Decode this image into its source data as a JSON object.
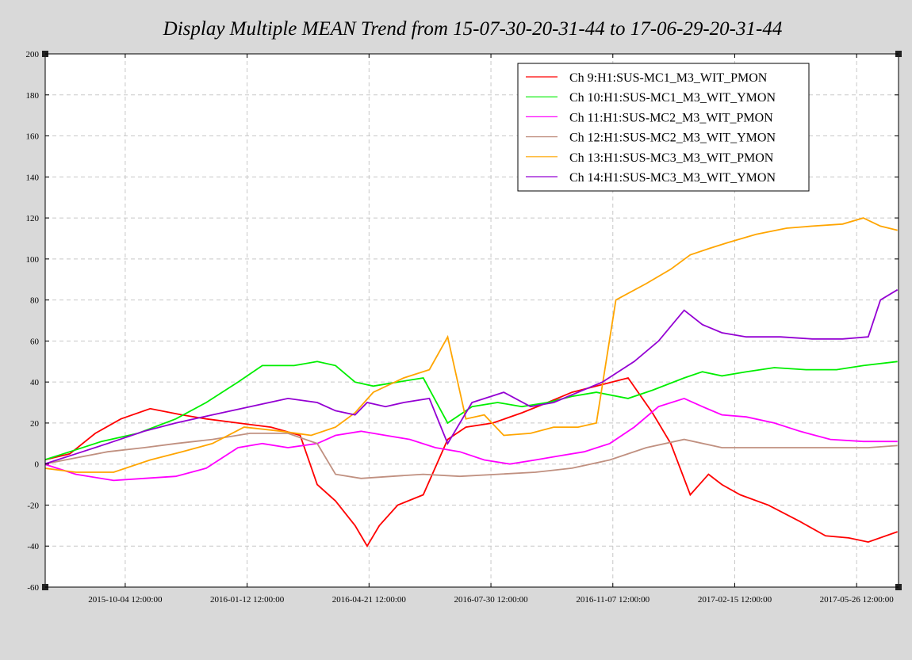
{
  "chart_data": {
    "type": "line",
    "title": "Display Multiple MEAN Trend from 15-07-30-20-31-44 to 17-06-29-20-31-44",
    "xlabel": "",
    "ylabel": "",
    "ylim": [
      -60,
      200
    ],
    "yticks": [
      -60,
      -40,
      -20,
      0,
      20,
      40,
      60,
      80,
      100,
      120,
      140,
      160,
      180,
      200
    ],
    "xlim": [
      "2015-07-30 20:31:44",
      "2017-06-29 20:31:44"
    ],
    "xticks": [
      {
        "date": "2015-10-04 12:00:00",
        "label": "2015-10-04 12:00:00"
      },
      {
        "date": "2016-01-12 12:00:00",
        "label": "2016-01-12 12:00:00"
      },
      {
        "date": "2016-04-21 12:00:00",
        "label": "2016-04-21 12:00:00"
      },
      {
        "date": "2016-07-30 12:00:00",
        "label": "2016-07-30 12:00:00"
      },
      {
        "date": "2016-11-07 12:00:00",
        "label": "2016-11-07 12:00:00"
      },
      {
        "date": "2017-02-15 12:00:00",
        "label": "2017-02-15 12:00:00"
      },
      {
        "date": "2017-05-26 12:00:00",
        "label": "2017-05-26 12:00:00"
      }
    ],
    "grid": true,
    "legend_position": "top-right",
    "series": [
      {
        "name": "Ch 9:H1:SUS-MC1_M3_WIT_PMON",
        "color": "#ff0000",
        "points": [
          [
            "2015-07-30",
            2
          ],
          [
            "2015-08-20",
            5
          ],
          [
            "2015-09-10",
            15
          ],
          [
            "2015-10-01",
            22
          ],
          [
            "2015-10-25",
            27
          ],
          [
            "2015-11-20",
            24
          ],
          [
            "2015-12-10",
            22
          ],
          [
            "2016-01-05",
            20
          ],
          [
            "2016-02-01",
            18
          ],
          [
            "2016-02-25",
            14
          ],
          [
            "2016-03-10",
            -10
          ],
          [
            "2016-03-25",
            -18
          ],
          [
            "2016-04-10",
            -30
          ],
          [
            "2016-04-20",
            -40
          ],
          [
            "2016-04-30",
            -30
          ],
          [
            "2016-05-15",
            -20
          ],
          [
            "2016-06-05",
            -15
          ],
          [
            "2016-06-25",
            12
          ],
          [
            "2016-07-10",
            18
          ],
          [
            "2016-08-01",
            20
          ],
          [
            "2016-08-25",
            25
          ],
          [
            "2016-09-15",
            30
          ],
          [
            "2016-10-05",
            35
          ],
          [
            "2016-10-25",
            38
          ],
          [
            "2016-11-20",
            42
          ],
          [
            "2016-12-10",
            25
          ],
          [
            "2016-12-25",
            10
          ],
          [
            "2017-01-10",
            -15
          ],
          [
            "2017-01-25",
            -5
          ],
          [
            "2017-02-05",
            -10
          ],
          [
            "2017-02-20",
            -15
          ],
          [
            "2017-03-15",
            -20
          ],
          [
            "2017-04-10",
            -28
          ],
          [
            "2017-05-01",
            -35
          ],
          [
            "2017-05-20",
            -36
          ],
          [
            "2017-06-05",
            -38
          ],
          [
            "2017-06-29",
            -33
          ]
        ]
      },
      {
        "name": "Ch 10:H1:SUS-MC1_M3_WIT_YMON",
        "color": "#00ee00",
        "points": [
          [
            "2015-07-30",
            2
          ],
          [
            "2015-08-20",
            6
          ],
          [
            "2015-09-15",
            11
          ],
          [
            "2015-10-15",
            15
          ],
          [
            "2015-11-15",
            22
          ],
          [
            "2015-12-10",
            30
          ],
          [
            "2016-01-05",
            40
          ],
          [
            "2016-01-25",
            48
          ],
          [
            "2016-02-20",
            48
          ],
          [
            "2016-03-10",
            50
          ],
          [
            "2016-03-25",
            48
          ],
          [
            "2016-04-10",
            40
          ],
          [
            "2016-04-25",
            38
          ],
          [
            "2016-05-15",
            40
          ],
          [
            "2016-06-05",
            42
          ],
          [
            "2016-06-25",
            20
          ],
          [
            "2016-07-15",
            28
          ],
          [
            "2016-08-05",
            30
          ],
          [
            "2016-08-25",
            28
          ],
          [
            "2016-09-15",
            30
          ],
          [
            "2016-10-05",
            33
          ],
          [
            "2016-10-25",
            35
          ],
          [
            "2016-11-20",
            32
          ],
          [
            "2016-12-10",
            36
          ],
          [
            "2017-01-05",
            42
          ],
          [
            "2017-01-20",
            45
          ],
          [
            "2017-02-05",
            43
          ],
          [
            "2017-02-25",
            45
          ],
          [
            "2017-03-20",
            47
          ],
          [
            "2017-04-15",
            46
          ],
          [
            "2017-05-10",
            46
          ],
          [
            "2017-06-01",
            48
          ],
          [
            "2017-06-29",
            50
          ]
        ]
      },
      {
        "name": "Ch 11:H1:SUS-MC2_M3_WIT_PMON",
        "color": "#ff00ff",
        "points": [
          [
            "2015-07-30",
            0
          ],
          [
            "2015-08-25",
            -5
          ],
          [
            "2015-09-25",
            -8
          ],
          [
            "2015-10-20",
            -7
          ],
          [
            "2015-11-15",
            -6
          ],
          [
            "2015-12-10",
            -2
          ],
          [
            "2016-01-05",
            8
          ],
          [
            "2016-01-25",
            10
          ],
          [
            "2016-02-15",
            8
          ],
          [
            "2016-03-10",
            10
          ],
          [
            "2016-03-25",
            14
          ],
          [
            "2016-04-15",
            16
          ],
          [
            "2016-05-05",
            14
          ],
          [
            "2016-05-25",
            12
          ],
          [
            "2016-06-15",
            8
          ],
          [
            "2016-07-05",
            6
          ],
          [
            "2016-07-25",
            2
          ],
          [
            "2016-08-15",
            0
          ],
          [
            "2016-09-05",
            2
          ],
          [
            "2016-09-25",
            4
          ],
          [
            "2016-10-15",
            6
          ],
          [
            "2016-11-05",
            10
          ],
          [
            "2016-11-25",
            18
          ],
          [
            "2016-12-15",
            28
          ],
          [
            "2017-01-05",
            32
          ],
          [
            "2017-01-20",
            28
          ],
          [
            "2017-02-05",
            24
          ],
          [
            "2017-02-25",
            23
          ],
          [
            "2017-03-20",
            20
          ],
          [
            "2017-04-10",
            16
          ],
          [
            "2017-05-05",
            12
          ],
          [
            "2017-06-01",
            11
          ],
          [
            "2017-06-29",
            11
          ]
        ]
      },
      {
        "name": "Ch 12:H1:SUS-MC2_M3_WIT_YMON",
        "color": "#c09080",
        "points": [
          [
            "2015-07-30",
            0
          ],
          [
            "2015-08-25",
            3
          ],
          [
            "2015-09-20",
            6
          ],
          [
            "2015-10-20",
            8
          ],
          [
            "2015-11-15",
            10
          ],
          [
            "2015-12-15",
            12
          ],
          [
            "2016-01-15",
            15
          ],
          [
            "2016-02-15",
            15
          ],
          [
            "2016-03-10",
            10
          ],
          [
            "2016-03-25",
            -5
          ],
          [
            "2016-04-15",
            -7
          ],
          [
            "2016-05-10",
            -6
          ],
          [
            "2016-06-05",
            -5
          ],
          [
            "2016-07-05",
            -6
          ],
          [
            "2016-08-05",
            -5
          ],
          [
            "2016-09-05",
            -4
          ],
          [
            "2016-10-05",
            -2
          ],
          [
            "2016-11-05",
            2
          ],
          [
            "2016-12-05",
            8
          ],
          [
            "2017-01-05",
            12
          ],
          [
            "2017-02-05",
            8
          ],
          [
            "2017-03-05",
            8
          ],
          [
            "2017-04-05",
            8
          ],
          [
            "2017-05-05",
            8
          ],
          [
            "2017-06-05",
            8
          ],
          [
            "2017-06-29",
            9
          ]
        ]
      },
      {
        "name": "Ch 13:H1:SUS-MC3_M3_WIT_PMON",
        "color": "#ffa500",
        "points": [
          [
            "2015-07-30",
            -2
          ],
          [
            "2015-08-25",
            -4
          ],
          [
            "2015-09-25",
            -4
          ],
          [
            "2015-10-25",
            2
          ],
          [
            "2015-11-20",
            6
          ],
          [
            "2015-12-15",
            10
          ],
          [
            "2016-01-10",
            18
          ],
          [
            "2016-02-10",
            16
          ],
          [
            "2016-03-05",
            14
          ],
          [
            "2016-03-25",
            18
          ],
          [
            "2016-04-10",
            25
          ],
          [
            "2016-04-25",
            35
          ],
          [
            "2016-05-20",
            42
          ],
          [
            "2016-06-10",
            46
          ],
          [
            "2016-06-25",
            62
          ],
          [
            "2016-07-10",
            22
          ],
          [
            "2016-07-25",
            24
          ],
          [
            "2016-08-10",
            14
          ],
          [
            "2016-09-01",
            15
          ],
          [
            "2016-09-20",
            18
          ],
          [
            "2016-10-10",
            18
          ],
          [
            "2016-10-25",
            20
          ],
          [
            "2016-11-10",
            80
          ],
          [
            "2016-12-05",
            88
          ],
          [
            "2016-12-25",
            95
          ],
          [
            "2017-01-10",
            102
          ],
          [
            "2017-01-25",
            105
          ],
          [
            "2017-02-10",
            108
          ],
          [
            "2017-03-05",
            112
          ],
          [
            "2017-03-30",
            115
          ],
          [
            "2017-04-20",
            116
          ],
          [
            "2017-05-15",
            117
          ],
          [
            "2017-06-01",
            120
          ],
          [
            "2017-06-15",
            116
          ],
          [
            "2017-06-29",
            114
          ]
        ]
      },
      {
        "name": "Ch 14:H1:SUS-MC3_M3_WIT_YMON",
        "color": "#9400d3",
        "points": [
          [
            "2015-07-30",
            0
          ],
          [
            "2015-08-25",
            5
          ],
          [
            "2015-09-20",
            10
          ],
          [
            "2015-10-20",
            16
          ],
          [
            "2015-11-15",
            20
          ],
          [
            "2015-12-15",
            24
          ],
          [
            "2016-01-15",
            28
          ],
          [
            "2016-02-15",
            32
          ],
          [
            "2016-03-10",
            30
          ],
          [
            "2016-03-25",
            26
          ],
          [
            "2016-04-10",
            24
          ],
          [
            "2016-04-20",
            30
          ],
          [
            "2016-05-05",
            28
          ],
          [
            "2016-05-20",
            30
          ],
          [
            "2016-06-10",
            32
          ],
          [
            "2016-06-25",
            10
          ],
          [
            "2016-07-15",
            30
          ],
          [
            "2016-08-10",
            35
          ],
          [
            "2016-09-01",
            28
          ],
          [
            "2016-09-20",
            30
          ],
          [
            "2016-10-10",
            35
          ],
          [
            "2016-10-30",
            40
          ],
          [
            "2016-11-25",
            50
          ],
          [
            "2016-12-15",
            60
          ],
          [
            "2017-01-05",
            75
          ],
          [
            "2017-01-20",
            68
          ],
          [
            "2017-02-05",
            64
          ],
          [
            "2017-02-25",
            62
          ],
          [
            "2017-03-25",
            62
          ],
          [
            "2017-04-20",
            61
          ],
          [
            "2017-05-15",
            61
          ],
          [
            "2017-06-05",
            62
          ],
          [
            "2017-06-15",
            80
          ],
          [
            "2017-06-29",
            85
          ]
        ]
      }
    ]
  }
}
